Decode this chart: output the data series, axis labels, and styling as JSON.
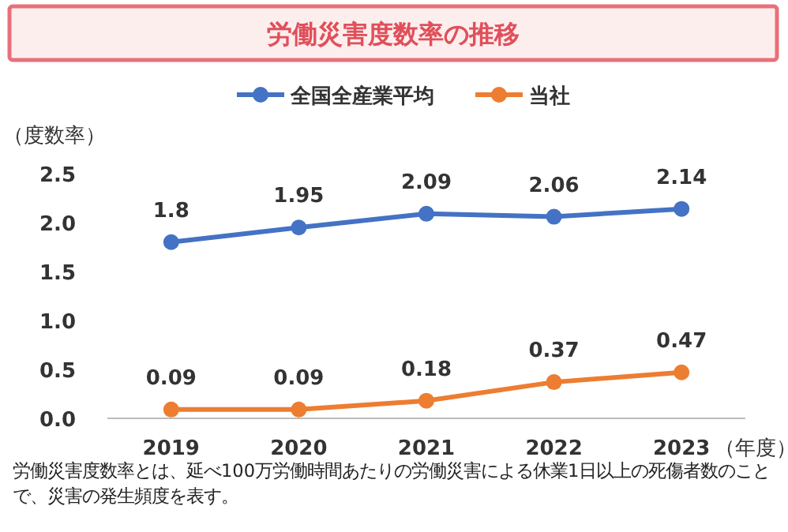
{
  "chart_data": {
    "type": "line",
    "title": "労働災害度数率の推移",
    "ylabel": "（度数率）",
    "xlabel": "（年度）",
    "categories": [
      "2019",
      "2020",
      "2021",
      "2022",
      "2023"
    ],
    "series": [
      {
        "name": "全国全産業平均",
        "color": "#4472c4",
        "values": [
          1.8,
          1.95,
          2.09,
          2.06,
          2.14
        ]
      },
      {
        "name": "当社",
        "color": "#ed7d31",
        "values": [
          0.09,
          0.09,
          0.18,
          0.37,
          0.47
        ]
      }
    ],
    "ylim": [
      0,
      2.5
    ],
    "yticks": [
      {
        "value": 0,
        "label": "0.0"
      },
      {
        "value": 0.5,
        "label": "0.5"
      },
      {
        "value": 1,
        "label": "1.0"
      },
      {
        "value": 1.5,
        "label": "1.5"
      },
      {
        "value": 2,
        "label": "2.0"
      },
      {
        "value": 2.5,
        "label": "2.5"
      }
    ],
    "data_labels": true,
    "legend": "top",
    "marker": "circle",
    "line_style": "solid",
    "annotations": [
      "労働災害度数率とは、延べ100万労働時間あたりの労働災害による休業1日以上の死傷者数のことで、災害の発生頻度を表す。"
    ]
  }
}
